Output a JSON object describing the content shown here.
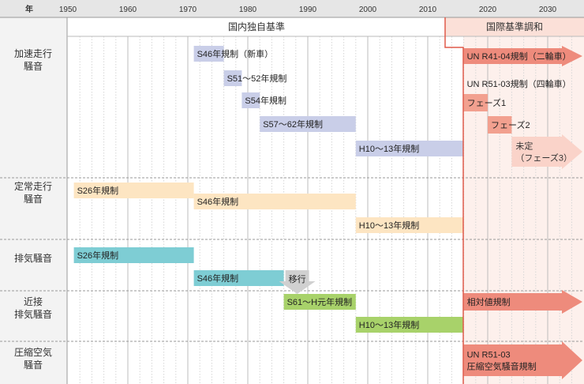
{
  "header": {
    "year_label": "年",
    "ticks": [
      "1950",
      "1960",
      "1970",
      "1980",
      "1990",
      "2000",
      "2010",
      "2020",
      "2030"
    ]
  },
  "phases": {
    "domestic": "国内独自基準",
    "international": "国際基準調和"
  },
  "rows": [
    {
      "label": "加速走行\n騒音"
    },
    {
      "label": "定常走行\n騒音"
    },
    {
      "label": "排気騒音"
    },
    {
      "label": "近接\n排気騒音"
    },
    {
      "label": "圧縮空気\n騒音"
    }
  ],
  "bars": [
    {
      "row": 0,
      "start": 1971,
      "end": 1976,
      "color": "#c9cee8",
      "label": "S46年規制（新車）"
    },
    {
      "row": 0,
      "start": 1976,
      "end": 1979,
      "color": "#c9cee8",
      "label": "S51〜52年規制"
    },
    {
      "row": 0,
      "start": 1979,
      "end": 1982,
      "color": "#c9cee8",
      "label": "S54年規制"
    },
    {
      "row": 0,
      "start": 1982,
      "end": 1998,
      "color": "#c9cee8",
      "label": "S57〜62年規制"
    },
    {
      "row": 0,
      "start": 1998,
      "end": 2016,
      "color": "#c9cee8",
      "label": "H10〜13年規制"
    },
    {
      "row": 1,
      "start": 1951,
      "end": 1971,
      "color": "#fde5c2",
      "label": "S26年規制"
    },
    {
      "row": 1,
      "start": 1971,
      "end": 1998,
      "color": "#fde5c2",
      "label": "S46年規制"
    },
    {
      "row": 1,
      "start": 1998,
      "end": 2016,
      "color": "#fde5c2",
      "label": "H10〜13年規制"
    },
    {
      "row": 2,
      "start": 1951,
      "end": 1971,
      "color": "#7ecdd4",
      "label": "S26年規制"
    },
    {
      "row": 2,
      "start": 1971,
      "end": 1986,
      "color": "#7ecdd4",
      "label": "S46年規制"
    },
    {
      "row": 3,
      "start": 1986,
      "end": 1998,
      "color": "#a8d26a",
      "label": "S61〜H元年規制"
    },
    {
      "row": 3,
      "start": 1998,
      "end": 2016,
      "color": "#a8d26a",
      "label": "H10〜13年規制"
    }
  ],
  "arrows": [
    {
      "row": 0,
      "start": 2016,
      "color": "#ee8b7c",
      "label": "UN R41-04規制（二輪車）"
    },
    {
      "row": 0,
      "start": 2016,
      "end": 2020,
      "color": "#f2a08f",
      "label": "フェーズ1"
    },
    {
      "row": 0,
      "start": 2020,
      "end": 2024,
      "color": "#f2a08f",
      "label": "フェーズ2"
    },
    {
      "row": 0,
      "start": 2024,
      "color": "#fad3c9",
      "label": "未定\n（フェーズ3）"
    },
    {
      "row": 3,
      "start": 2016,
      "color": "#ee8b7c",
      "label": "相対値規制"
    },
    {
      "row": 4,
      "start": 2016,
      "color": "#ee8b7c",
      "label": "UN R51-03\n圧縮空気騒音規制"
    }
  ],
  "notes": [
    {
      "row": 0,
      "text": "UN R51-03規制（四輪車）"
    }
  ],
  "transition": {
    "row": 2,
    "year": 1987,
    "label": "移行"
  }
}
